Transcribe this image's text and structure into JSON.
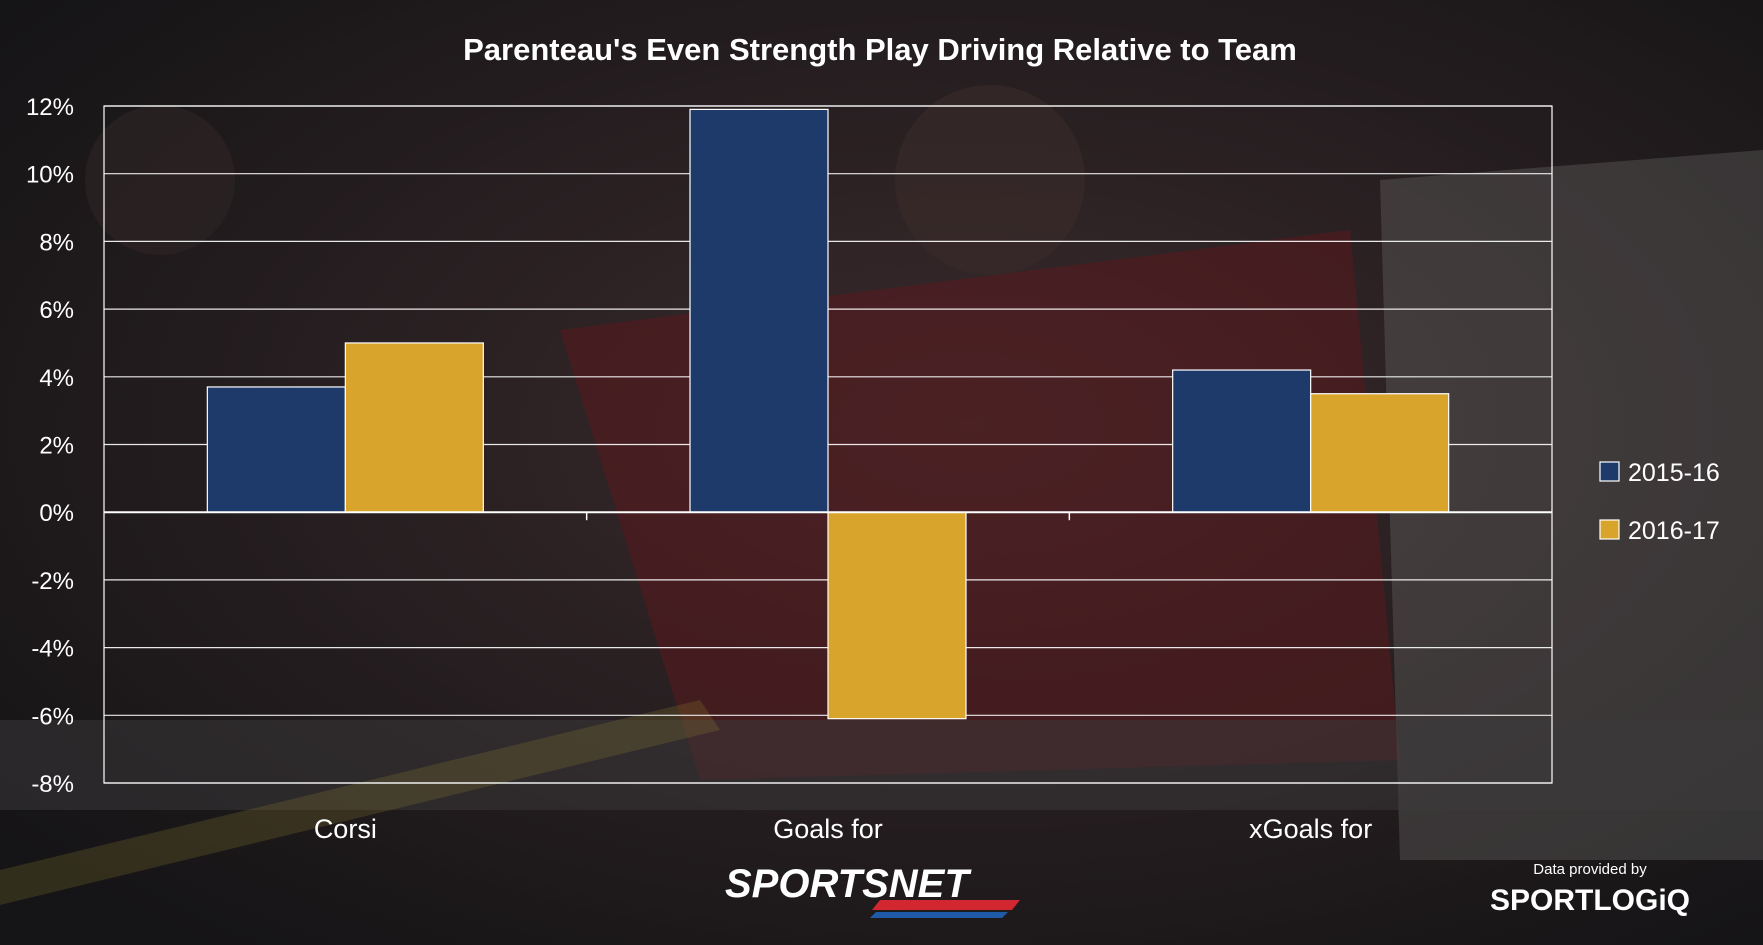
{
  "chart_data": {
    "type": "bar",
    "title": "Parenteau's Even Strength Play Driving Relative to Team",
    "categories": [
      "Corsi",
      "Goals for",
      "xGoals for"
    ],
    "series": [
      {
        "name": "2015-16",
        "color": "#1d3a6a",
        "values": [
          3.7,
          11.9,
          4.2
        ]
      },
      {
        "name": "2016-17",
        "color": "#d9a42c",
        "values": [
          5.0,
          -6.1,
          3.5
        ]
      }
    ],
    "ylim": [
      -8,
      12
    ],
    "yticks": [
      -8,
      -6,
      -4,
      -2,
      0,
      2,
      4,
      6,
      8,
      10,
      12
    ],
    "ytick_labels": [
      "-8%",
      "-6%",
      "-4%",
      "-2%",
      "0%",
      "2%",
      "4%",
      "6%",
      "8%",
      "10%",
      "12%"
    ],
    "grid": true,
    "legend_position": "right"
  },
  "branding": {
    "sportsnet": "SPORTSNET",
    "credit_line": "Data provided by",
    "sportlogiq": "SPORTLOGiQ"
  }
}
